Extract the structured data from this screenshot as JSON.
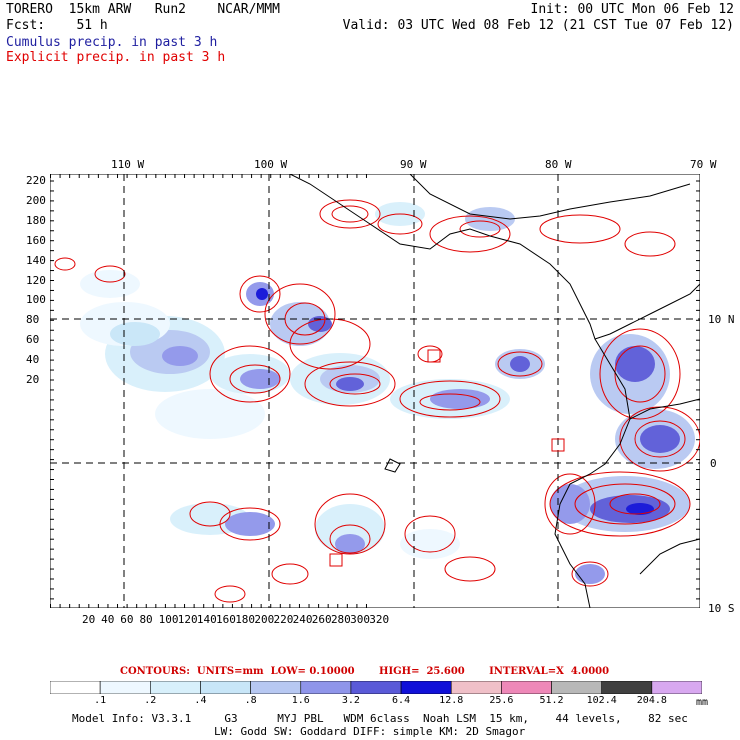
{
  "header": {
    "line1_left": "TORERO  15km ARW   Run2    NCAR/MMM",
    "line1_right": "Init: 00 UTC Mon 06 Feb 12",
    "line2_left": "Fcst:    51 h",
    "line2_right": "Valid: 03 UTC Wed 08 Feb 12 (21 CST Tue 07 Feb 12)",
    "cumulus_label": "Cumulus precip. in past 3 h",
    "explicit_label": "Explicit precip. in past 3 h"
  },
  "map": {
    "lon_labels": [
      "110 W",
      "100 W",
      "90 W",
      "80 W",
      "70 W"
    ],
    "lat_labels": [
      "10 N",
      "0",
      "10 S"
    ],
    "y_ticks": [
      "220",
      "200",
      "180",
      "160",
      "140",
      "120",
      "100",
      "80",
      "60",
      "40",
      "20"
    ],
    "x_ticks": [
      "20",
      "40",
      "60",
      "80",
      "100",
      "120",
      "140",
      "160",
      "180",
      "200",
      "220",
      "240",
      "260",
      "280",
      "300",
      "320"
    ],
    "colors": {
      "coast": "#000000",
      "contour": "#e00000",
      "grid": "#000000"
    }
  },
  "contours": {
    "text": "CONTOURS:  UNITS=mm  LOW= 0.10000       HIGH=  25.600       INTERVAL=X  4.0000"
  },
  "legend": {
    "labels": [
      ".1",
      ".2",
      ".4",
      ".8",
      "1.6",
      "3.2",
      "6.4",
      "12.8",
      "25.6",
      "51.2",
      "102.4",
      "204.8"
    ],
    "colors": [
      "#ffffff",
      "#eef8ff",
      "#d8f0fb",
      "#c8e6f8",
      "#b7c8f2",
      "#8f95ea",
      "#5a5ad8",
      "#1010d8",
      "#f0c0c8",
      "#ee88b8",
      "#b8b8b8",
      "#404040",
      "#d8a8f0"
    ],
    "unit": "mm"
  },
  "footer": {
    "line1": "Model Info: V3.3.1     G3      MYJ PBL   WDM 6class  Noah LSM  15 km,    44 levels,    82 sec",
    "line2": "LW: Godd SW: Goddard DIFF: simple KM: 2D Smagor"
  }
}
